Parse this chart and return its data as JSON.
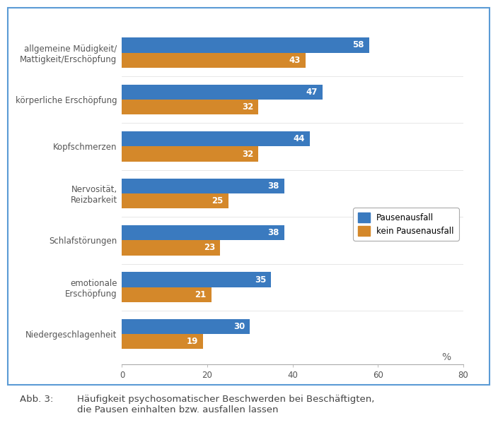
{
  "categories": [
    "allgemeine Müdigkeit/\nMattigkeit/Erschöpfung",
    "körperliche Erschöpfung",
    "Kopfschmerzen",
    "Nervosität,\nReizbarkeit",
    "Schlafstörungen",
    "emotionale\nErschöpfung",
    "Niedergeschlagenheit"
  ],
  "pausenausfall": [
    58,
    47,
    44,
    38,
    38,
    35,
    30
  ],
  "kein_pausenausfall": [
    43,
    32,
    32,
    25,
    23,
    21,
    19
  ],
  "color_pause": "#3a7abf",
  "color_kein": "#d4882a",
  "xlim": [
    0,
    80
  ],
  "xticks": [
    0,
    20,
    40,
    60,
    80
  ],
  "legend_pause": "Pausenausfall",
  "legend_kein": "kein Pausenausfall",
  "caption_label": "Abb. 3:",
  "caption_text": "Häufigkeit psychosomatischer Beschwerden bei Beschäftigten,\ndie Pausen einhalten bzw. ausfallen lassen",
  "percent_label": "%",
  "background_color": "#ffffff",
  "border_color": "#5b9bd5",
  "bar_height": 0.32,
  "bar_label_fontsize": 8.5,
  "tick_label_fontsize": 8.5,
  "legend_fontsize": 8.5,
  "caption_fontsize": 9.5
}
